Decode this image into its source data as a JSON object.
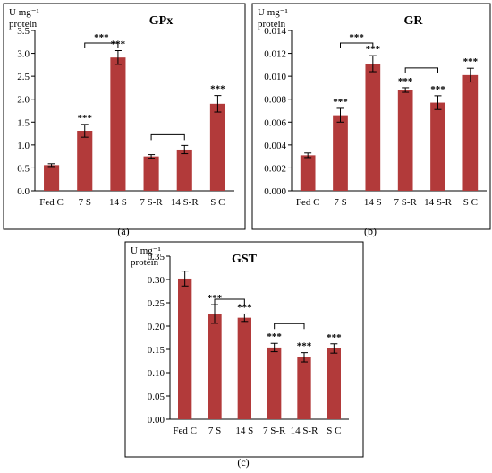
{
  "chart_data": [
    {
      "type": "bar",
      "title": "GPx",
      "panel_label": "(a)",
      "ylabel": [
        "U mg⁻¹",
        "protein"
      ],
      "categories": [
        "Fed C",
        "7 S",
        "14 S",
        "7 S-R",
        "14 S-R",
        "S C"
      ],
      "values": [
        0.56,
        1.31,
        2.91,
        0.75,
        0.9,
        1.9
      ],
      "errors": [
        0.03,
        0.14,
        0.15,
        0.04,
        0.09,
        0.18
      ],
      "significance": [
        "",
        "***",
        "***",
        "",
        "",
        "***"
      ],
      "yticks": [
        "0.0",
        "0.5",
        "1.0",
        "1.5",
        "2.0",
        "2.5",
        "3.0",
        "3.5"
      ],
      "ylim": [
        0,
        3.5
      ],
      "brackets": [
        {
          "from": 1,
          "to": 2,
          "label": "***"
        },
        {
          "from": 3,
          "to": 4,
          "label": ""
        }
      ],
      "bar_color": "#b23a3a",
      "grid": false
    },
    {
      "type": "bar",
      "title": "GR",
      "panel_label": "(b)",
      "ylabel": [
        "U mg⁻¹",
        "protein"
      ],
      "categories": [
        "Fed C",
        "7 S",
        "14 S",
        "7 S-R",
        "14 S-R",
        "S C"
      ],
      "values": [
        0.0031,
        0.0066,
        0.0111,
        0.0088,
        0.0077,
        0.0101
      ],
      "errors": [
        0.0002,
        0.0006,
        0.0007,
        0.0002,
        0.0006,
        0.0006
      ],
      "significance": [
        "",
        "***",
        "***",
        "***",
        "***",
        "***"
      ],
      "yticks": [
        "0.000",
        "0.002",
        "0.004",
        "0.006",
        "0.008",
        "0.010",
        "0.012",
        "0.014"
      ],
      "ylim": [
        0,
        0.014
      ],
      "brackets": [
        {
          "from": 1,
          "to": 2,
          "label": "***"
        },
        {
          "from": 3,
          "to": 4,
          "label": ""
        }
      ],
      "bar_color": "#b23a3a",
      "grid": false
    },
    {
      "type": "bar",
      "title": "GST",
      "panel_label": "(c)",
      "ylabel": [
        "U mg⁻¹",
        "protein"
      ],
      "categories": [
        "Fed C",
        "7 S",
        "14 S",
        "7 S-R",
        "14 S-R",
        "S C"
      ],
      "values": [
        0.302,
        0.226,
        0.218,
        0.154,
        0.133,
        0.152
      ],
      "errors": [
        0.016,
        0.02,
        0.008,
        0.009,
        0.01,
        0.01
      ],
      "significance": [
        "",
        "***",
        "***",
        "***",
        "***",
        "***"
      ],
      "yticks": [
        "0.00",
        "0.05",
        "0.10",
        "0.15",
        "0.20",
        "0.25",
        "0.30",
        "0.35"
      ],
      "ylim": [
        0,
        0.35
      ],
      "brackets": [
        {
          "from": 1,
          "to": 2,
          "label": ""
        },
        {
          "from": 3,
          "to": 4,
          "label": ""
        }
      ],
      "bar_color": "#b23a3a",
      "grid": false
    }
  ]
}
